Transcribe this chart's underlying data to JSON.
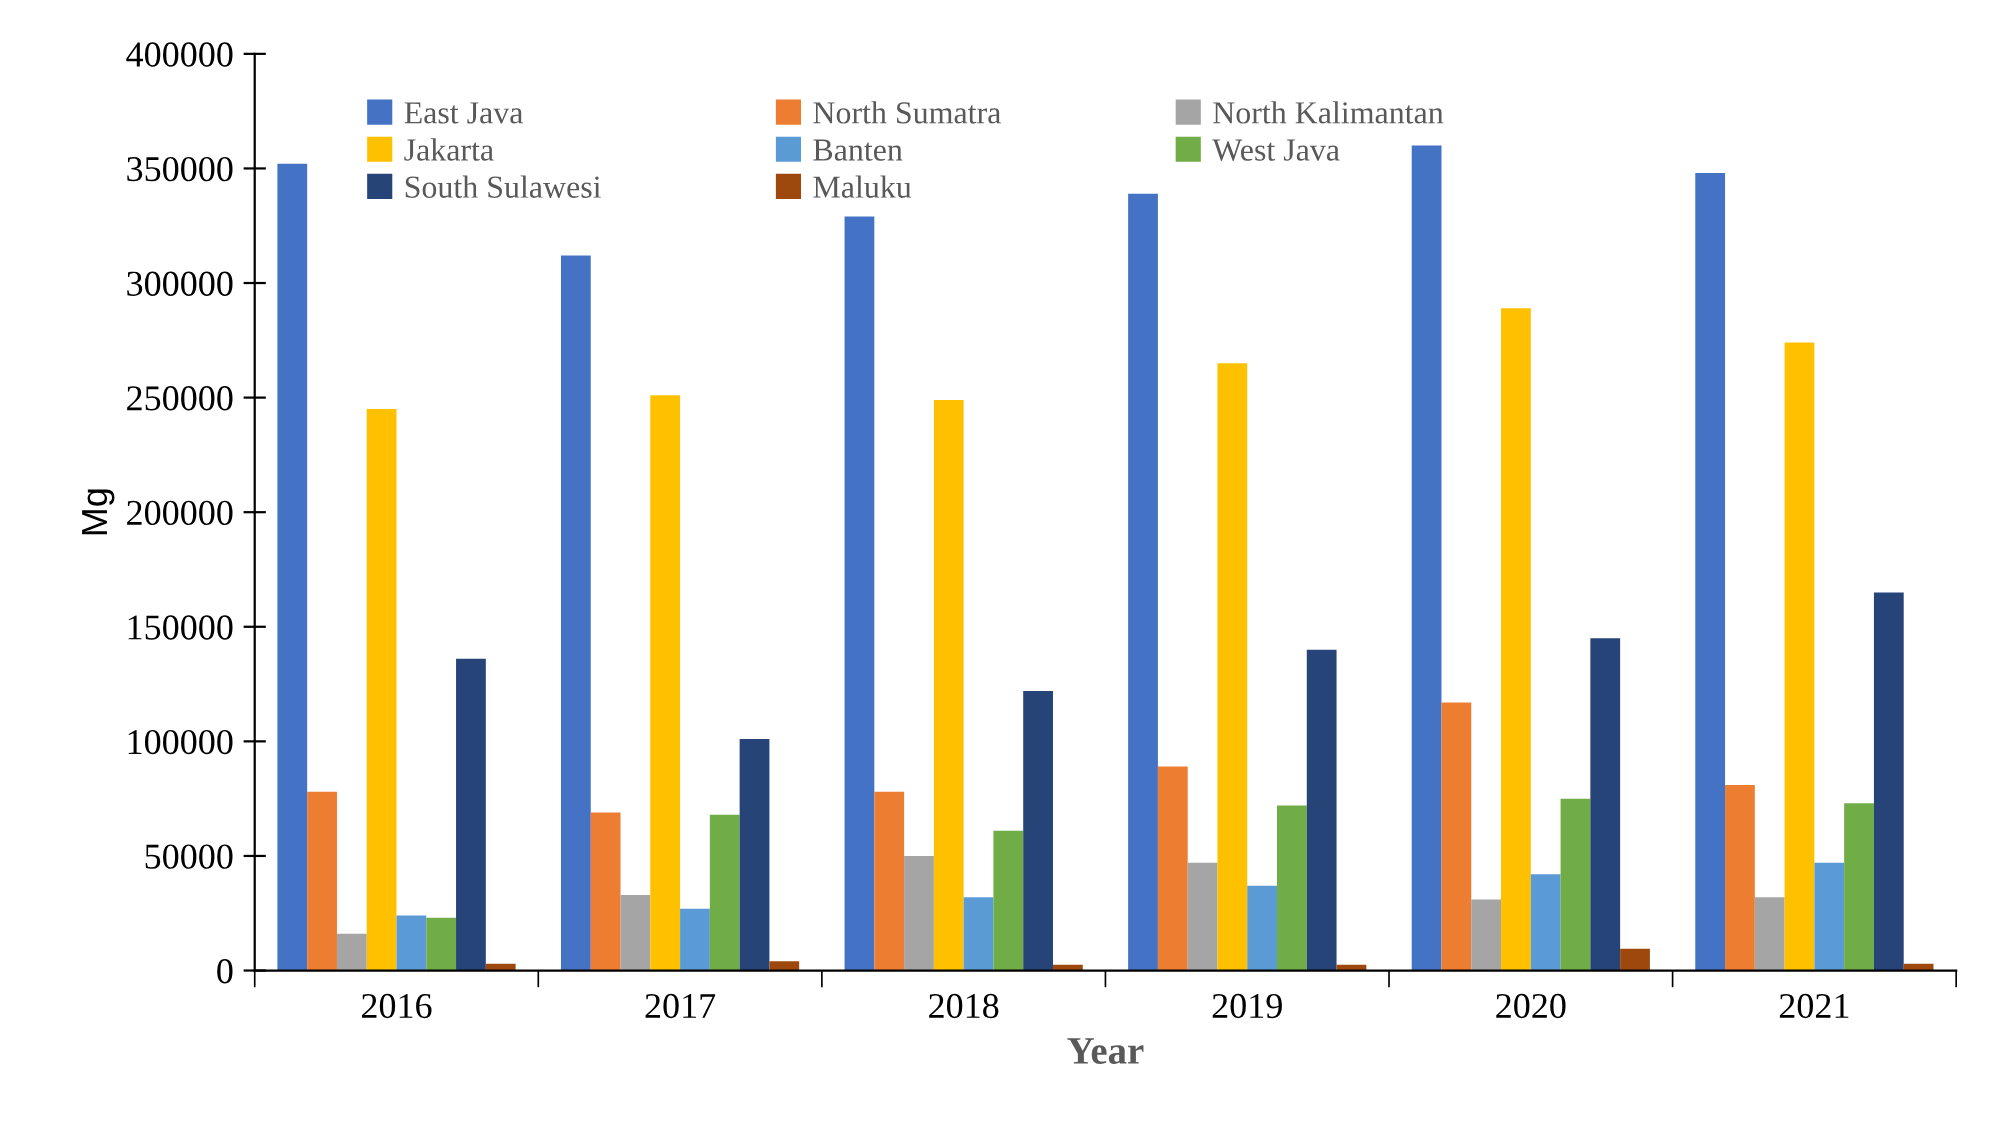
{
  "chart_data": {
    "type": "bar",
    "xlabel": "Year",
    "ylabel": "Mg",
    "categories": [
      "2016",
      "2017",
      "2018",
      "2019",
      "2020",
      "2021"
    ],
    "series": [
      {
        "name": "East Java",
        "color": "#4472c4",
        "values": [
          352000,
          312000,
          329000,
          339000,
          360000,
          348000
        ]
      },
      {
        "name": "North Sumatra",
        "color": "#ed7d31",
        "values": [
          78000,
          69000,
          78000,
          89000,
          117000,
          81000
        ]
      },
      {
        "name": "North Kalimantan",
        "color": "#a5a5a5",
        "values": [
          16000,
          33000,
          50000,
          47000,
          31000,
          32000
        ]
      },
      {
        "name": "Jakarta",
        "color": "#ffc000",
        "values": [
          245000,
          251000,
          249000,
          265000,
          289000,
          274000
        ]
      },
      {
        "name": "Banten",
        "color": "#5b9bd5",
        "values": [
          24000,
          27000,
          32000,
          37000,
          42000,
          47000
        ]
      },
      {
        "name": "West Java",
        "color": "#70ad47",
        "values": [
          23000,
          68000,
          61000,
          72000,
          75000,
          73000
        ]
      },
      {
        "name": "South Sulawesi",
        "color": "#264478",
        "values": [
          136000,
          101000,
          122000,
          140000,
          145000,
          165000
        ]
      },
      {
        "name": "Maluku",
        "color": "#9e480e",
        "values": [
          3000,
          4000,
          2500,
          2500,
          9500,
          3000
        ]
      }
    ],
    "ylim": [
      0,
      400000
    ],
    "yticks": [
      0,
      50000,
      100000,
      150000,
      200000,
      250000,
      300000,
      350000,
      400000
    ],
    "grid": false,
    "legend": "top left"
  }
}
